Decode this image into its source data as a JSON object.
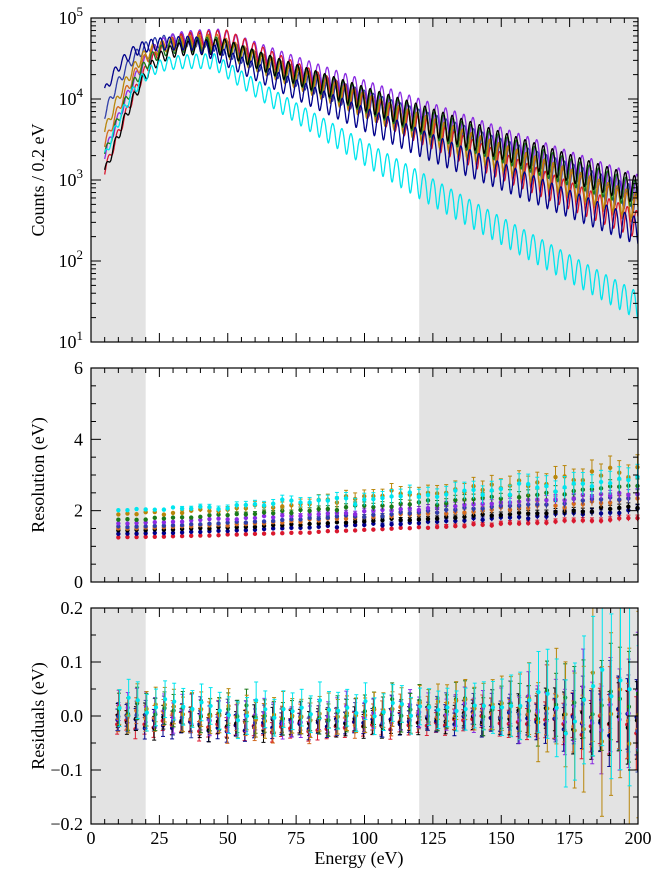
{
  "figure": {
    "xlabel": "Energy (eV)"
  },
  "chart_data": [
    {
      "type": "line",
      "panel": "spectrum",
      "ylabel": "Counts / 0.2 eV",
      "yscale": "log",
      "xlim": [
        0,
        200
      ],
      "ylim": [
        10,
        100000
      ],
      "x_ticks": [
        "0",
        "25",
        "50",
        "75",
        "100",
        "125",
        "150",
        "175",
        "200"
      ],
      "y_ticks": [
        {
          "base": "10",
          "exp": "1"
        },
        {
          "base": "10",
          "exp": "2"
        },
        {
          "base": "10",
          "exp": "3"
        },
        {
          "base": "10",
          "exp": "4"
        },
        {
          "base": "10",
          "exp": "5"
        }
      ],
      "shaded_regions": [
        [
          0,
          20
        ],
        [
          120,
          200
        ]
      ],
      "peak_spacing_eV": 3.33,
      "series": [
        {
          "color": "#2f3ea8",
          "peak_energy": 42,
          "peak_counts": 55000,
          "tail_counts_at_200": 600
        },
        {
          "color": "#8a2be2",
          "peak_energy": 48,
          "peak_counts": 60000,
          "tail_counts_at_200": 850
        },
        {
          "color": "#d9182e",
          "peak_energy": 50,
          "peak_counts": 58000,
          "tail_counts_at_200": 300
        },
        {
          "color": "#d2691e",
          "peak_energy": 46,
          "peak_counts": 52000,
          "tail_counts_at_200": 450
        },
        {
          "color": "#b8860b",
          "peak_energy": 44,
          "peak_counts": 50000,
          "tail_counts_at_200": 500
        },
        {
          "color": "#1a7a1a",
          "peak_energy": 47,
          "peak_counts": 48000,
          "tail_counts_at_200": 700
        },
        {
          "color": "#000000",
          "peak_energy": 49,
          "peak_counts": 45000,
          "tail_counts_at_200": 800
        },
        {
          "color": "#00008b",
          "peak_energy": 38,
          "peak_counts": 50000,
          "tail_counts_at_200": 250
        },
        {
          "color": "#00e5ee",
          "peak_energy": 45,
          "peak_counts": 30000,
          "tail_counts_at_200": 30
        }
      ]
    },
    {
      "type": "scatter",
      "panel": "resolution",
      "ylabel": "Resolution (eV)",
      "xlim": [
        0,
        200
      ],
      "ylim": [
        0,
        6
      ],
      "x_ticks": [
        "0",
        "25",
        "50",
        "75",
        "100",
        "125",
        "150",
        "175",
        "200"
      ],
      "y_ticks": [
        "0",
        "2",
        "4",
        "6"
      ],
      "shaded_regions": [
        [
          0,
          20
        ],
        [
          120,
          200
        ]
      ],
      "x_start": 10,
      "x_step": 3.33,
      "series": [
        {
          "color": "#d9182e",
          "start": 1.25,
          "end": 1.8,
          "noise": 0.03
        },
        {
          "color": "#00008b",
          "start": 1.35,
          "end": 2.0,
          "noise": 0.04
        },
        {
          "color": "#000000",
          "start": 1.45,
          "end": 2.1,
          "noise": 0.04
        },
        {
          "color": "#d2691e",
          "start": 1.5,
          "end": 2.3,
          "noise": 0.05
        },
        {
          "color": "#2f3ea8",
          "start": 1.55,
          "end": 2.4,
          "noise": 0.05
        },
        {
          "color": "#8a2be2",
          "start": 1.65,
          "end": 2.5,
          "noise": 0.06
        },
        {
          "color": "#1a7a1a",
          "start": 1.75,
          "end": 2.7,
          "noise": 0.08
        },
        {
          "color": "#b8860b",
          "start": 1.9,
          "end": 3.1,
          "noise": 0.15
        },
        {
          "color": "#00e5ee",
          "start": 2.0,
          "end": 2.9,
          "noise": 0.15
        }
      ]
    },
    {
      "type": "scatter",
      "panel": "residuals",
      "ylabel": "Residuals (eV)",
      "xlim": [
        0,
        200
      ],
      "ylim": [
        -0.2,
        0.2
      ],
      "x_ticks": [
        "0",
        "25",
        "50",
        "75",
        "100",
        "125",
        "150",
        "175",
        "200"
      ],
      "y_ticks": [
        "-0.2",
        "-0.1",
        "0.0",
        "0.1",
        "0.2"
      ],
      "shaded_regions": [
        [
          0,
          20
        ],
        [
          120,
          200
        ]
      ],
      "x_start": 10,
      "x_step": 3.33,
      "series": [
        {
          "color": "#d9182e"
        },
        {
          "color": "#00008b"
        },
        {
          "color": "#000000"
        },
        {
          "color": "#d2691e"
        },
        {
          "color": "#2f3ea8"
        },
        {
          "color": "#8a2be2"
        },
        {
          "color": "#1a7a1a"
        },
        {
          "color": "#b8860b"
        },
        {
          "color": "#00e5ee"
        }
      ]
    }
  ]
}
